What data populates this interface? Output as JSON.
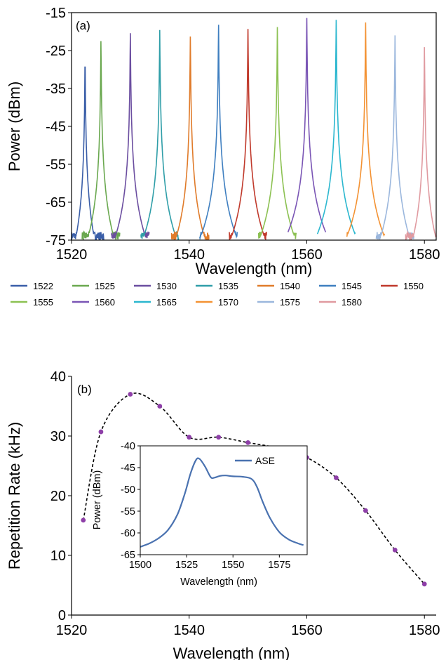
{
  "chart_data": [
    {
      "type": "line",
      "panel_label": "(a)",
      "xlabel": "Wavelength (nm)",
      "ylabel": "Power (dBm)",
      "xlim": [
        1520,
        1582
      ],
      "ylim": [
        -75,
        -15
      ],
      "xticks": [
        1520,
        1540,
        1560,
        1580
      ],
      "yticks": [
        -15,
        -25,
        -35,
        -45,
        -55,
        -65,
        -75
      ],
      "noise_floor": -75,
      "grid": false,
      "legend_position": "bottom",
      "series": [
        {
          "name": "1522",
          "peak_wavelength": 1522.3,
          "peak_power": -26.7,
          "color": "#3a5ea8"
        },
        {
          "name": "1525",
          "peak_wavelength": 1525.0,
          "peak_power": -22.5,
          "color": "#6aa84f"
        },
        {
          "name": "1530",
          "peak_wavelength": 1530.0,
          "peak_power": -20.4,
          "color": "#6b4ea0"
        },
        {
          "name": "1535",
          "peak_wavelength": 1535.0,
          "peak_power": -19.6,
          "color": "#2f9ea8"
        },
        {
          "name": "1540",
          "peak_wavelength": 1540.2,
          "peak_power": -21.3,
          "color": "#e07b2a"
        },
        {
          "name": "1545",
          "peak_wavelength": 1545.0,
          "peak_power": -18.2,
          "color": "#3f7fc0"
        },
        {
          "name": "1550",
          "peak_wavelength": 1550.0,
          "peak_power": -19.3,
          "color": "#c0392b"
        },
        {
          "name": "1555",
          "peak_wavelength": 1555.0,
          "peak_power": -18.8,
          "color": "#8cc152"
        },
        {
          "name": "1560",
          "peak_wavelength": 1560.0,
          "peak_power": -16.4,
          "color": "#7a55b5"
        },
        {
          "name": "1565",
          "peak_wavelength": 1565.0,
          "peak_power": -16.9,
          "color": "#2bb7cf"
        },
        {
          "name": "1570",
          "peak_wavelength": 1570.0,
          "peak_power": -17.6,
          "color": "#f39233"
        },
        {
          "name": "1575",
          "peak_wavelength": 1575.0,
          "peak_power": -21.0,
          "color": "#9bb7dd"
        },
        {
          "name": "1580",
          "peak_wavelength": 1580.0,
          "peak_power": -24.1,
          "color": "#e09aa0"
        }
      ]
    },
    {
      "type": "scatter",
      "panel_label": "(b)",
      "xlabel": "Wavelength (nm)",
      "ylabel": "Repetition Rate (kHz)",
      "xlim": [
        1520,
        1582
      ],
      "ylim": [
        0,
        40
      ],
      "xticks": [
        1520,
        1540,
        1560,
        1580
      ],
      "yticks": [
        0,
        10,
        20,
        30,
        40
      ],
      "grid": false,
      "marker_color": "#8e3fa8",
      "trend_line": "dashed",
      "x": [
        1522,
        1525,
        1530,
        1535,
        1540,
        1545,
        1550,
        1555,
        1560,
        1565,
        1570,
        1575,
        1580
      ],
      "y": [
        15.9,
        30.7,
        37.0,
        35.0,
        29.8,
        29.8,
        28.9,
        28.0,
        26.4,
        23.0,
        17.5,
        10.9,
        5.2
      ],
      "inset": {
        "type": "line",
        "xlabel": "Wavelength (nm)",
        "ylabel": "Power (dBm)",
        "xlim": [
          1500,
          1590
        ],
        "ylim": [
          -65,
          -40
        ],
        "xticks": [
          1500,
          1525,
          1550,
          1575
        ],
        "yticks": [
          -40,
          -45,
          -50,
          -55,
          -60,
          -65
        ],
        "legend_position": "top-right",
        "series": [
          {
            "name": "ASE",
            "color": "#4a72b0",
            "x": [
              1500,
              1505,
              1510,
              1515,
              1520,
              1524,
              1527,
              1530,
              1532,
              1535,
              1538,
              1540,
              1543,
              1546,
              1550,
              1555,
              1560,
              1563,
              1566,
              1570,
              1575,
              1580,
              1585,
              1588
            ],
            "y": [
              -63.2,
              -62.4,
              -61.2,
              -59.3,
              -55.8,
              -51.0,
              -46.5,
              -43.3,
              -43.0,
              -44.8,
              -47.2,
              -47.3,
              -46.9,
              -46.8,
              -47.0,
              -47.1,
              -47.6,
              -49.5,
              -52.8,
              -56.6,
              -59.8,
              -61.5,
              -62.4,
              -62.8
            ]
          }
        ]
      }
    }
  ]
}
